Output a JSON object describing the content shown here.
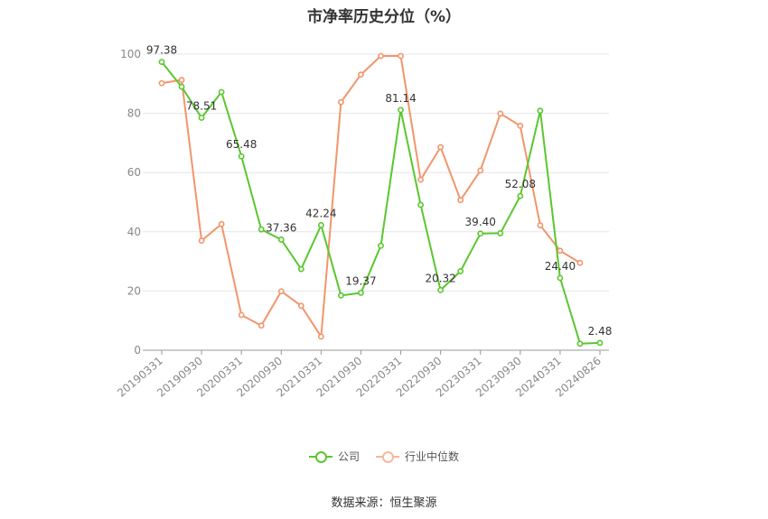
{
  "chart_data": {
    "type": "line",
    "title": "市净率历史分位（%）",
    "xlabel": "",
    "ylabel": "",
    "ylim": [
      0,
      100
    ],
    "yticks": [
      0,
      20,
      40,
      60,
      80,
      100
    ],
    "x_tick_labels": [
      "20190331",
      "20190930",
      "20200331",
      "20200930",
      "20210331",
      "20210930",
      "20220331",
      "20220930",
      "20230331",
      "20230930",
      "20240331",
      "20240826"
    ],
    "x": [
      "20190331",
      "20190630",
      "20190930",
      "20191231",
      "20200331",
      "20200630",
      "20200930",
      "20201231",
      "20210331",
      "20210630",
      "20210930",
      "20211231",
      "20220331",
      "20220630",
      "20220930",
      "20221231",
      "20230331",
      "20230630",
      "20230930",
      "20231231",
      "20240331",
      "20240630",
      "20240826"
    ],
    "grid": true,
    "legend_position": "bottom",
    "series": [
      {
        "name": "公司",
        "color": "#5ac72e",
        "values": [
          97.38,
          89.0,
          78.51,
          87.2,
          65.48,
          40.8,
          37.36,
          27.4,
          42.24,
          18.5,
          19.37,
          35.3,
          81.14,
          49.1,
          20.32,
          26.7,
          39.4,
          39.5,
          52.08,
          80.9,
          24.4,
          2.2,
          2.48
        ],
        "labels": [
          "97.38",
          "",
          "78.51",
          "",
          "65.48",
          "",
          "37.36",
          "",
          "42.24",
          "",
          "19.37",
          "",
          "81.14",
          "",
          "20.32",
          "",
          "39.40",
          "",
          "52.08",
          "",
          "24.40",
          "",
          "2.48"
        ]
      },
      {
        "name": "行业中位数",
        "color": "#f2956b",
        "values": [
          90.2,
          91.3,
          37.0,
          42.6,
          11.9,
          8.3,
          19.9,
          15.0,
          4.6,
          83.8,
          93.1,
          99.4,
          99.4,
          57.6,
          68.6,
          50.7,
          60.7,
          79.9,
          75.8,
          42.2,
          33.6,
          29.5,
          null
        ]
      }
    ]
  },
  "source_text": "数据来源：恒生聚源"
}
